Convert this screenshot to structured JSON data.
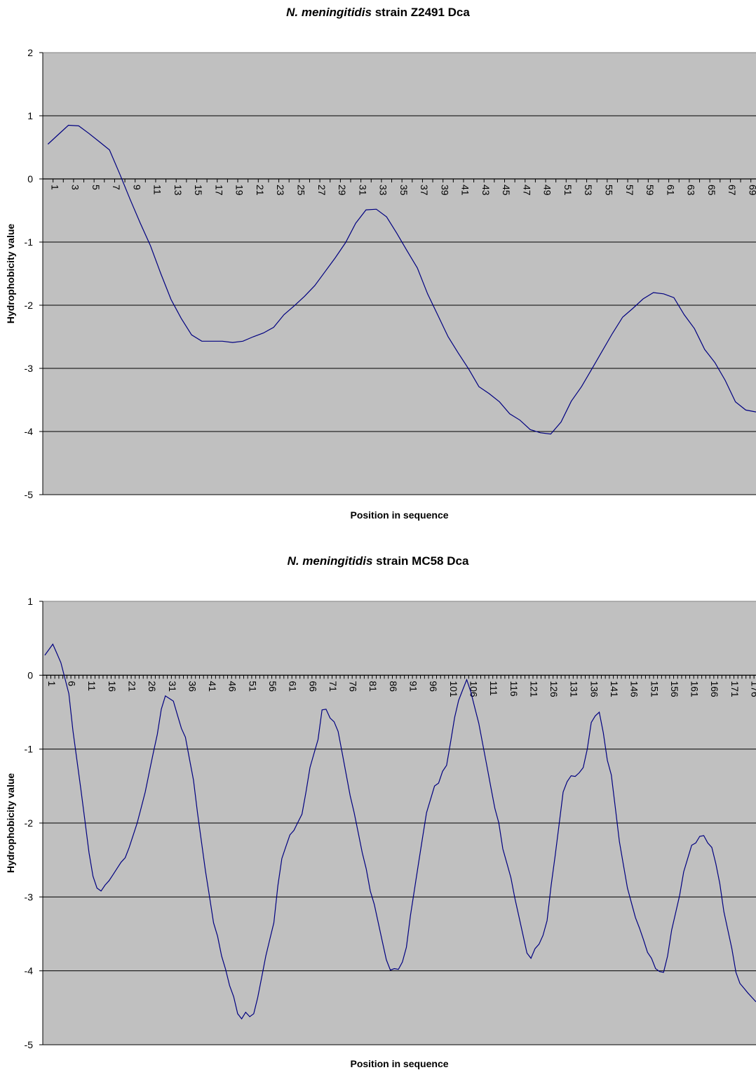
{
  "chart_data": [
    {
      "type": "line",
      "title_italic": "N. meningitidis",
      "title_rest": " strain Z2491 Dca",
      "xlabel": "Position in sequence",
      "ylabel": "Hydrophobicity value",
      "ylim": [
        -5,
        2
      ],
      "yticks": [
        2,
        1,
        0,
        -1,
        -2,
        -3,
        -4,
        -5
      ],
      "x_axis_at": 0,
      "xtick_step": 2,
      "grid": true,
      "plot_bg": "#c0c0c0",
      "line_color": "#000080",
      "x": [
        1,
        2,
        3,
        4,
        5,
        6,
        7,
        8,
        9,
        10,
        11,
        12,
        13,
        14,
        15,
        16,
        17,
        18,
        19,
        20,
        21,
        22,
        23,
        24,
        25,
        26,
        27,
        28,
        29,
        30,
        31,
        32,
        33,
        34,
        35,
        36,
        37,
        38,
        39,
        40,
        41,
        42,
        43,
        44,
        45,
        46,
        47,
        48,
        49,
        50,
        51,
        52,
        53,
        54,
        55,
        56,
        57,
        58,
        59,
        60,
        61,
        62,
        63,
        64,
        65,
        66,
        67,
        68,
        69,
        70
      ],
      "values": [
        0.55,
        0.7,
        0.85,
        0.84,
        0.72,
        0.59,
        0.46,
        0.08,
        -0.32,
        -0.7,
        -1.06,
        -1.5,
        -1.91,
        -2.21,
        -2.47,
        -2.57,
        -2.57,
        -2.57,
        -2.59,
        -2.57,
        -2.5,
        -2.44,
        -2.35,
        -2.15,
        -2.01,
        -1.86,
        -1.69,
        -1.47,
        -1.25,
        -1.01,
        -0.7,
        -0.49,
        -0.48,
        -0.6,
        -0.86,
        -1.14,
        -1.41,
        -1.82,
        -2.16,
        -2.5,
        -2.76,
        -3.01,
        -3.29,
        -3.4,
        -3.53,
        -3.72,
        -3.82,
        -3.97,
        -4.02,
        -4.04,
        -3.85,
        -3.52,
        -3.29,
        -3.01,
        -2.73,
        -2.45,
        -2.19,
        -2.05,
        -1.9,
        -1.8,
        -1.82,
        -1.88,
        -2.15,
        -2.37,
        -2.7,
        -2.91,
        -3.19,
        -3.53,
        -3.66,
        -3.69
      ]
    },
    {
      "type": "line",
      "title_italic": "N. meningitidis",
      "title_rest": " strain MC58 Dca",
      "xlabel": "Position in sequence",
      "ylabel": "Hydrophobicity value",
      "ylim": [
        -5,
        1
      ],
      "yticks": [
        1,
        0,
        -1,
        -2,
        -3,
        -4,
        -5
      ],
      "x_axis_at": 0,
      "xtick_step": 5,
      "grid": true,
      "plot_bg": "#c0c0c0",
      "line_color": "#000080",
      "x_count": 178,
      "anchors": [
        [
          1,
          0.27
        ],
        [
          3,
          0.42
        ],
        [
          5,
          0.17
        ],
        [
          7,
          -0.25
        ],
        [
          8,
          -0.75
        ],
        [
          10,
          -1.55
        ],
        [
          12,
          -2.4
        ],
        [
          13,
          -2.72
        ],
        [
          14,
          -2.88
        ],
        [
          15,
          -2.92
        ],
        [
          16,
          -2.84
        ],
        [
          17,
          -2.78
        ],
        [
          20,
          -2.53
        ],
        [
          21,
          -2.47
        ],
        [
          22,
          -2.33
        ],
        [
          24,
          -2.0
        ],
        [
          26,
          -1.58
        ],
        [
          28,
          -1.05
        ],
        [
          29,
          -0.8
        ],
        [
          30,
          -0.46
        ],
        [
          31,
          -0.28
        ],
        [
          33,
          -0.35
        ],
        [
          35,
          -0.72
        ],
        [
          36,
          -0.84
        ],
        [
          38,
          -1.42
        ],
        [
          39,
          -1.86
        ],
        [
          41,
          -2.65
        ],
        [
          43,
          -3.35
        ],
        [
          44,
          -3.53
        ],
        [
          45,
          -3.8
        ],
        [
          46,
          -3.98
        ],
        [
          47,
          -4.2
        ],
        [
          48,
          -4.35
        ],
        [
          49,
          -4.58
        ],
        [
          50,
          -4.65
        ],
        [
          51,
          -4.56
        ],
        [
          52,
          -4.62
        ],
        [
          53,
          -4.58
        ],
        [
          54,
          -4.36
        ],
        [
          56,
          -3.8
        ],
        [
          58,
          -3.35
        ],
        [
          59,
          -2.85
        ],
        [
          60,
          -2.48
        ],
        [
          62,
          -2.16
        ],
        [
          63,
          -2.1
        ],
        [
          65,
          -1.88
        ],
        [
          66,
          -1.58
        ],
        [
          67,
          -1.25
        ],
        [
          69,
          -0.87
        ],
        [
          70,
          -0.47
        ],
        [
          71,
          -0.46
        ],
        [
          72,
          -0.58
        ],
        [
          73,
          -0.63
        ],
        [
          74,
          -0.76
        ],
        [
          75,
          -1.05
        ],
        [
          77,
          -1.63
        ],
        [
          78,
          -1.86
        ],
        [
          80,
          -2.4
        ],
        [
          81,
          -2.62
        ],
        [
          82,
          -2.92
        ],
        [
          83,
          -3.1
        ],
        [
          85,
          -3.6
        ],
        [
          86,
          -3.85
        ],
        [
          87,
          -3.99
        ],
        [
          88,
          -3.97
        ],
        [
          89,
          -3.98
        ],
        [
          90,
          -3.88
        ],
        [
          91,
          -3.68
        ],
        [
          92,
          -3.25
        ],
        [
          94,
          -2.55
        ],
        [
          96,
          -1.86
        ],
        [
          98,
          -1.5
        ],
        [
          99,
          -1.46
        ],
        [
          100,
          -1.3
        ],
        [
          101,
          -1.22
        ],
        [
          102,
          -0.9
        ],
        [
          103,
          -0.57
        ],
        [
          104,
          -0.34
        ],
        [
          106,
          -0.06
        ],
        [
          107,
          -0.22
        ],
        [
          109,
          -0.65
        ],
        [
          111,
          -1.22
        ],
        [
          113,
          -1.8
        ],
        [
          114,
          -2.0
        ],
        [
          115,
          -2.35
        ],
        [
          117,
          -2.74
        ],
        [
          118,
          -3.02
        ],
        [
          121,
          -3.76
        ],
        [
          122,
          -3.83
        ],
        [
          123,
          -3.7
        ],
        [
          124,
          -3.64
        ],
        [
          125,
          -3.52
        ],
        [
          126,
          -3.32
        ],
        [
          127,
          -2.85
        ],
        [
          128,
          -2.45
        ],
        [
          130,
          -1.58
        ],
        [
          131,
          -1.44
        ],
        [
          132,
          -1.36
        ],
        [
          133,
          -1.37
        ],
        [
          134,
          -1.32
        ],
        [
          135,
          -1.25
        ],
        [
          136,
          -1.0
        ],
        [
          137,
          -0.64
        ],
        [
          138,
          -0.55
        ],
        [
          139,
          -0.5
        ],
        [
          140,
          -0.78
        ],
        [
          141,
          -1.15
        ],
        [
          142,
          -1.35
        ],
        [
          144,
          -2.25
        ],
        [
          146,
          -2.88
        ],
        [
          148,
          -3.28
        ],
        [
          149,
          -3.42
        ],
        [
          150,
          -3.58
        ],
        [
          151,
          -3.75
        ],
        [
          152,
          -3.83
        ],
        [
          153,
          -3.97
        ],
        [
          154,
          -4.01
        ],
        [
          155,
          -4.02
        ],
        [
          156,
          -3.8
        ],
        [
          157,
          -3.45
        ],
        [
          159,
          -2.98
        ],
        [
          160,
          -2.66
        ],
        [
          162,
          -2.3
        ],
        [
          163,
          -2.27
        ],
        [
          164,
          -2.18
        ],
        [
          165,
          -2.17
        ],
        [
          166,
          -2.27
        ],
        [
          167,
          -2.33
        ],
        [
          168,
          -2.55
        ],
        [
          169,
          -2.82
        ],
        [
          170,
          -3.2
        ],
        [
          172,
          -3.7
        ],
        [
          173,
          -4.02
        ],
        [
          174,
          -4.17
        ],
        [
          176,
          -4.3
        ],
        [
          178,
          -4.42
        ]
      ]
    }
  ]
}
